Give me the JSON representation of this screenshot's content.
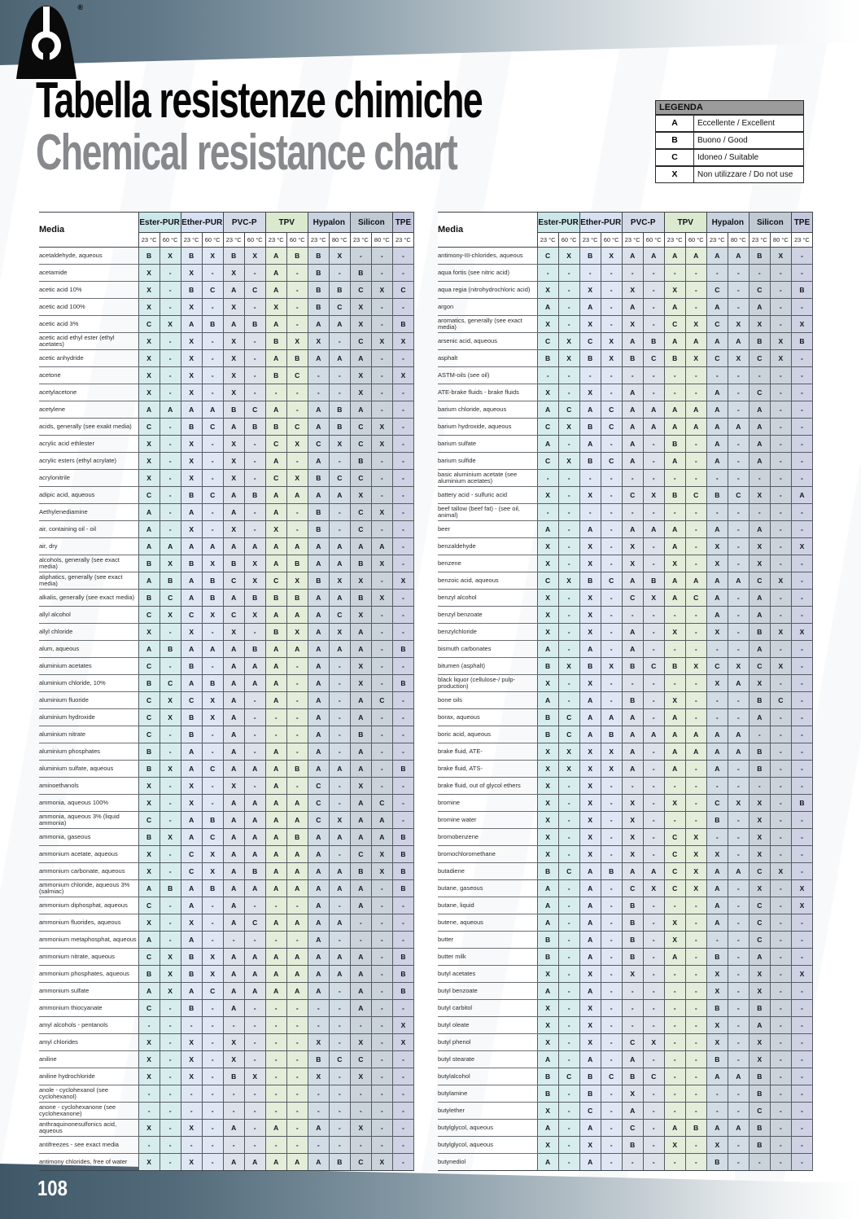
{
  "header": {
    "title_line1": "Tabella resistenze chimiche",
    "title_line2": "Chemical resistance chart",
    "logo_registered": "®"
  },
  "legend": {
    "title": "LEGENDA",
    "items": [
      {
        "code": "A",
        "label": "Eccellente / Excellent"
      },
      {
        "code": "B",
        "label": "Buono / Good"
      },
      {
        "code": "C",
        "label": "Idoneo / Suitable"
      },
      {
        "code": "X",
        "label": "Non utilizzare / Do not use"
      }
    ]
  },
  "columns": {
    "media_label": "Media",
    "groups": [
      {
        "name": "Ester-PUR",
        "temps": [
          "23 °C",
          "60 °C"
        ],
        "header_color": "#cbe7e8",
        "cell_color": "#d7eded"
      },
      {
        "name": "Ether-PUR",
        "temps": [
          "23 °C",
          "60 °C"
        ],
        "header_color": "#d8e1f1",
        "cell_color": "#e0e7f4"
      },
      {
        "name": "PVC-P",
        "temps": [
          "23 °C",
          "60 °C"
        ],
        "header_color": "#d5dbe6",
        "cell_color": "#dce1ea"
      },
      {
        "name": "TPV",
        "temps": [
          "23 °C",
          "60 °C"
        ],
        "header_color": "#dbe9cf",
        "cell_color": "#e3edda"
      },
      {
        "name": "Hypalon",
        "temps": [
          "23 °C",
          "80 °C"
        ],
        "header_color": "#c8d3df",
        "cell_color": "#d2dce5"
      },
      {
        "name": "Silicon",
        "temps": [
          "23 °C",
          "80 °C"
        ],
        "header_color": "#c1cad2",
        "cell_color": "#cbd3da"
      },
      {
        "name": "TPE",
        "temps": [
          "23 °C"
        ],
        "header_color": "#c5c8dc",
        "cell_color": "#cfd2e3"
      }
    ]
  },
  "tables": {
    "left": {
      "rows": [
        {
          "media": "acetaldehyde, aqueous",
          "values": "B X B X B X A B B X - - -"
        },
        {
          "media": "acetamide",
          "values": "X - X - X - A - B - B - -"
        },
        {
          "media": "acetic acid 10%",
          "values": "X - B C A C A - B B C X C"
        },
        {
          "media": "acetic acid 100%",
          "values": "X - X - X - X - B C X - -"
        },
        {
          "media": "acetic acid 3%",
          "values": "C X A B A B A - A A X - B"
        },
        {
          "media": "acetic acid ethyl ester (ethyl acetates)",
          "values": "X - X - X - B X X - C X X"
        },
        {
          "media": "acetic anhydride",
          "values": "X - X - X - A B A A A - -"
        },
        {
          "media": "acetone",
          "values": "X - X - X - B C - - X - X"
        },
        {
          "media": "acetylacetone",
          "values": "X - X - X - - - - - X - -"
        },
        {
          "media": "acetylene",
          "values": "A A A A B C A - A B A - -"
        },
        {
          "media": "acids, generally (see exakt media)",
          "values": "C - B C A B B C A B C X -"
        },
        {
          "media": "acrylic acid ethlester",
          "values": "X - X - X - C X C X C X -"
        },
        {
          "media": "acrylic esters (ethyl acrylate)",
          "values": "X - X - X - A - A - B - -"
        },
        {
          "media": "acrylonitrile",
          "values": "X - X - X - C X B C C - -"
        },
        {
          "media": "adipic acid, aqueous",
          "values": "C - B C A B A A A A X - -"
        },
        {
          "media": "Aethylenediamine",
          "values": "A - A - A - A - B - C X -"
        },
        {
          "media": "air, containing oil - oil",
          "values": "A - X - X - X - B - C - -"
        },
        {
          "media": "air, dry",
          "values": "A A A A A A A A A A A A -"
        },
        {
          "media": "alcohols, generally (see exact media)",
          "values": "B X B X B X A B A A B X -"
        },
        {
          "media": "aliphatics, generally (see exact media)",
          "values": "A B A B C X C X B X X - X"
        },
        {
          "media": "alkalis, generally (see exact media)",
          "values": "B C A B A B B B A A B X -"
        },
        {
          "media": "allyl alcohol",
          "values": "C X C X C X A A A C X - -"
        },
        {
          "media": "allyl chloride",
          "values": "X - X - X - B X A X A - -"
        },
        {
          "media": "alum, aqueous",
          "values": "A B A A A B A A A A A - B"
        },
        {
          "media": "aluminium acetates",
          "values": "C - B - A A A - A - X - -"
        },
        {
          "media": "aluminium chloride, 10%",
          "values": "B C A B A A A - A - X - B"
        },
        {
          "media": "aluminium fluoride",
          "values": "C X C X A - A - A - A C -"
        },
        {
          "media": "aluminium hydroxide",
          "values": "C X B X A - - - A - A - -"
        },
        {
          "media": "aluminium nitrate",
          "values": "C - B - A - - - A - B - -"
        },
        {
          "media": "aluminium phosphates",
          "values": "B - A - A - A - A - A - -"
        },
        {
          "media": "aluminium sulfate, aqueous",
          "values": "B X A C A A A B A A A - B"
        },
        {
          "media": "aminoethanols",
          "values": "X - X - X - A - C - X - -"
        },
        {
          "media": "ammonia, aqueous 100%",
          "values": "X - X - A A A A C - A C -"
        },
        {
          "media": "ammonia, aqueous 3% (liquid ammonia)",
          "values": "C - A B A A A A C X A A -"
        },
        {
          "media": "ammonia, gaseous",
          "values": "B X A C A A A B A A A A B"
        },
        {
          "media": "ammonium acetate, aqueous",
          "values": "X - C X A A A A A - C X B"
        },
        {
          "media": "ammonium carbonate, aqueous",
          "values": "X - C X A B A A A A B X B"
        },
        {
          "media": "ammonium chloride, aqueous 3% (salmiac)",
          "values": "A B A B A A A A A A A - B"
        },
        {
          "media": "ammonium diphosphat, aqueous",
          "values": "C - A - A - - - A - A - -"
        },
        {
          "media": "ammonium fluorides, aqueous",
          "values": "X - X - A C A A A A - - -"
        },
        {
          "media": "ammonium metaphosphat, aqueous",
          "values": "A - A - - - - - A - - - -"
        },
        {
          "media": "ammonium nitrate, aqueous",
          "values": "C X B X A A A A A A A - B"
        },
        {
          "media": "ammonium phosphates, aqueous",
          "values": "B X B X A A A A A A A - B"
        },
        {
          "media": "ammonium sulfate",
          "values": "A X A C A A A A A - A - B"
        },
        {
          "media": "ammonium thiocyanate",
          "values": "C - B - A - - - - - A - -"
        },
        {
          "media": "amyl alcohols - pentanols",
          "values": "- - - - - - - - - - - - X"
        },
        {
          "media": "amyl chlorides",
          "values": "X - X - X - - - X - X - X"
        },
        {
          "media": "aniline",
          "values": "X - X - X - - - B C C - -"
        },
        {
          "media": "aniline hydrochloride",
          "values": "X - X - B X - - X - X - -"
        },
        {
          "media": "anole - cyclohexanol (see cyclohexanol)",
          "values": "- - - - - - - - - - - - -"
        },
        {
          "media": "anone - cyclohexanone (see cyclohexanone)",
          "values": "- - - - - - - - - - - - -"
        },
        {
          "media": "anthraquinonesulfonics acid, aqueous",
          "values": "X - X - A - A - A - X - -"
        },
        {
          "media": "antifreezes - see exact media",
          "values": "- - - - - - - - - - - - -"
        },
        {
          "media": "antimony chlorides, free of water",
          "values": "X - X - A A A A A B C X -"
        }
      ]
    },
    "right": {
      "rows": [
        {
          "media": "antimony-III-chlorides, aqueous",
          "values": "C X B X A A A A A A B X -"
        },
        {
          "media": "aqua fortis (see nitric acid)",
          "values": "- - - - - - - - - - - - -"
        },
        {
          "media": "aqua regia (nitrohydrochloric acid)",
          "values": "X - X - X - X - C - C - B"
        },
        {
          "media": "argon",
          "values": "A - A - A - A - A - A - -"
        },
        {
          "media": "aromatics, generally (see exact media)",
          "values": "X - X - X - C X C X X - X"
        },
        {
          "media": "arsenic acid, aqueous",
          "values": "C X C X A B A A A A B X B"
        },
        {
          "media": "asphalt",
          "values": "B X B X B C B X C X C X -"
        },
        {
          "media": "ASTM-oils (see oil)",
          "values": "- - - - - - - - - - - - -"
        },
        {
          "media": "ATE-brake fluids - brake fluids",
          "values": "X - X - A - - - A - C - -"
        },
        {
          "media": "barium chloride, aqueous",
          "values": "A C A C A A A A A - A - -"
        },
        {
          "media": "barium hydroxide, aqueous",
          "values": "C X B C A A A A A A A - -"
        },
        {
          "media": "barium sulfate",
          "values": "A - A - A - B - A - A - -"
        },
        {
          "media": "barium sulfide",
          "values": "C X B C A - A - A - A - -"
        },
        {
          "media": "basic aluminium acetate (see aluminium acetates)",
          "values": "- - - - - - - - - - - - -"
        },
        {
          "media": "battery acid - sulfuric acid",
          "values": "X - X - C X B C B C X - A"
        },
        {
          "media": "beef tallow (beef fat) - (see oil, animal)",
          "values": "- - - - - - - - - - - - -"
        },
        {
          "media": "beer",
          "values": "A - A - A A A - A - A - -"
        },
        {
          "media": "benzaldehyde",
          "values": "X - X - X - A - X - X - X"
        },
        {
          "media": "benzene",
          "values": "X - X - X - X - X - X - -"
        },
        {
          "media": "benzoic acid, aqueous",
          "values": "C X B C A B A A A A C X -"
        },
        {
          "media": "benzyl alcohol",
          "values": "X - X - C X A C A - A - -"
        },
        {
          "media": "benzyl benzoate",
          "values": "X - X - - - - - A - A - -"
        },
        {
          "media": "benzylchloride",
          "values": "X - X - A - X - X - B X X"
        },
        {
          "media": "bismuth carbonates",
          "values": "A - A - A - - - - - A - -"
        },
        {
          "media": "bitumen (asphalt)",
          "values": "B X B X B C B X C X C X -"
        },
        {
          "media": "black liquor (cellulose-/ pulp-production)",
          "values": "X - X - - - - - X A X - -"
        },
        {
          "media": "bone oils",
          "values": "A - A - B - X - - - B C -"
        },
        {
          "media": "borax, aqueous",
          "values": "B C A A A - A - - - A - -"
        },
        {
          "media": "boric acid, aqueous",
          "values": "B C A B A A A A A A - - -"
        },
        {
          "media": "brake fluid, ATE-",
          "values": "X X X X A - A A A A B - -"
        },
        {
          "media": "brake fluid, ATS-",
          "values": "X X X X A - A - A - B - -"
        },
        {
          "media": "brake fluid, out of glycol ethers",
          "values": "X - X - - - - - - - - - -"
        },
        {
          "media": "bromine",
          "values": "X - X - X - X - C X X - B"
        },
        {
          "media": "bromine water",
          "values": "X - X - X - - - B - X - -"
        },
        {
          "media": "bromobenzene",
          "values": "X - X - X - C X - - X - -"
        },
        {
          "media": "bromochloromethane",
          "values": "X - X - X - C X X - X - -"
        },
        {
          "media": "butadiene",
          "values": "B C A B A A C X A A C X -"
        },
        {
          "media": "butane, gaseous",
          "values": "A - A - C X C X A - X - X"
        },
        {
          "media": "butane, liquid",
          "values": "A - A - B - - - A - C - X"
        },
        {
          "media": "butene, aqueous",
          "values": "A - A - B - X - A - C - -"
        },
        {
          "media": "butter",
          "values": "B - A - B - X - - - C - -"
        },
        {
          "media": "butter milk",
          "values": "B - A - B - A - B - A - -"
        },
        {
          "media": "butyl acetates",
          "values": "X - X - X - - - X - X - X"
        },
        {
          "media": "butyl benzoate",
          "values": "A - A - - - - - X - X - -"
        },
        {
          "media": "butyl carbitol",
          "values": "X - X - - - - - B - B - -"
        },
        {
          "media": "butyl oleate",
          "values": "X - X - - - - - X - A - -"
        },
        {
          "media": "butyl phenol",
          "values": "X - X - C X - - X - X - -"
        },
        {
          "media": "butyl stearate",
          "values": "A - A - A - - - B - X - -"
        },
        {
          "media": "butylalcohol",
          "values": "B C B C B C - - A A B - -"
        },
        {
          "media": "butylamine",
          "values": "B - B - X - - - - - B - -"
        },
        {
          "media": "butylether",
          "values": "X - C - A - - - - - C - -"
        },
        {
          "media": "butylglycol, aqueous",
          "values": "A - A - C - A B A A B - -"
        },
        {
          "media": "butylglycol, aqueous",
          "values": "X - X - B - X - X - B - -"
        },
        {
          "media": "butynediol",
          "values": "A - A - - - - - B - - - -"
        }
      ]
    }
  },
  "footer": {
    "page_number": "108"
  }
}
